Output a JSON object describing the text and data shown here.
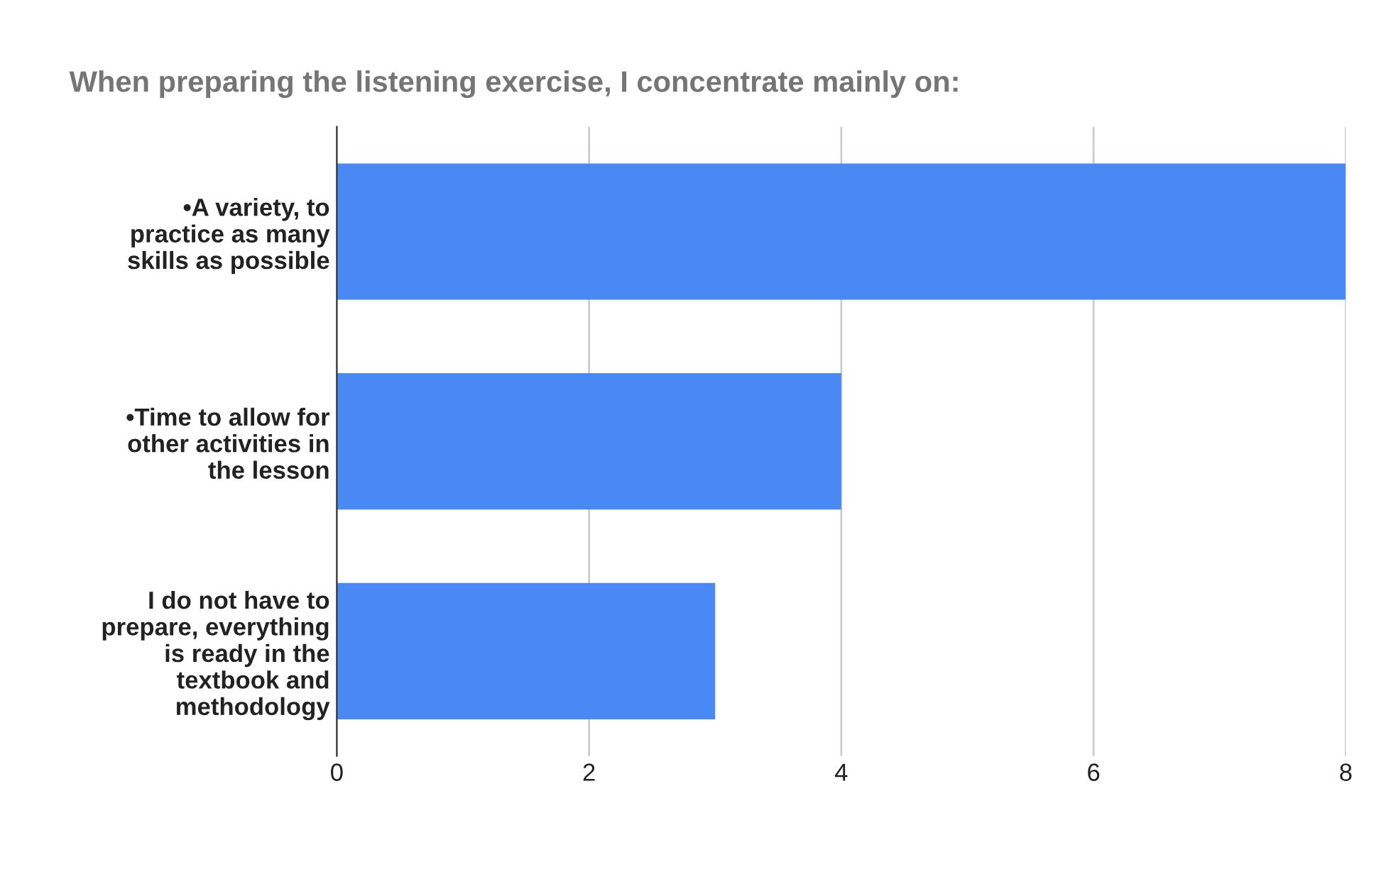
{
  "chart_data": {
    "type": "bar",
    "orientation": "horizontal",
    "title": "When preparing the listening exercise, I concentrate mainly on:",
    "categories": [
      "•A variety, to practice as many skills as possible",
      "•Time to allow for other activities in the lesson",
      "I do not have to prepare, everything is ready in the textbook and methodology"
    ],
    "values": [
      8,
      4,
      3
    ],
    "color": "#4a89f3",
    "xlim": [
      0,
      8
    ],
    "xticks": [
      0,
      2,
      4,
      6,
      8
    ],
    "grid": "x"
  }
}
